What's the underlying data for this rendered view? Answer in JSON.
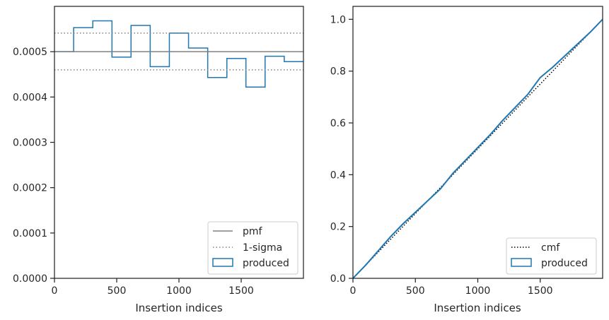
{
  "chart_data": [
    {
      "type": "histogram-step",
      "xlabel": "Insertion indices",
      "ylabel": "",
      "xlim": [
        0,
        2000
      ],
      "ylim": [
        0,
        0.0006
      ],
      "xticks": [
        0,
        500,
        1000,
        1500
      ],
      "xtick_labels": [
        "0",
        "500",
        "1000",
        "1500"
      ],
      "yticks": [
        0,
        0.0001,
        0.0002,
        0.0003,
        0.0004,
        0.0005
      ],
      "ytick_labels": [
        "0.0000",
        "0.0001",
        "0.0002",
        "0.0003",
        "0.0004",
        "0.0005"
      ],
      "bin_edges": [
        0,
        154,
        308,
        462,
        615,
        769,
        923,
        1077,
        1231,
        1385,
        1538,
        1692,
        1846,
        2000
      ],
      "series": [
        {
          "name": "produced",
          "kind": "step",
          "color": "#1f77b4",
          "values": [
            0.0005,
            0.000553,
            0.000568,
            0.000488,
            0.000558,
            0.000467,
            0.000541,
            0.000508,
            0.000443,
            0.000485,
            0.000422,
            0.00049,
            0.000478
          ]
        },
        {
          "name": "pmf",
          "kind": "hline",
          "color": "#808080",
          "value": 0.0005
        },
        {
          "name": "1-sigma",
          "kind": "hline-pair",
          "color": "#808080",
          "values": [
            0.00046,
            0.000541
          ]
        }
      ],
      "legend": {
        "position": "lower-right",
        "entries": [
          {
            "label": "pmf",
            "marker": "solid-line"
          },
          {
            "label": "1-sigma",
            "marker": "dotted-line"
          },
          {
            "label": "produced",
            "marker": "patch"
          }
        ]
      },
      "grid": false
    },
    {
      "type": "line",
      "xlabel": "Insertion indices",
      "ylabel": "",
      "xlim": [
        0,
        2000
      ],
      "ylim": [
        0,
        1.05
      ],
      "xticks": [
        0,
        500,
        1000,
        1500
      ],
      "xtick_labels": [
        "0",
        "500",
        "1000",
        "1500"
      ],
      "yticks": [
        0,
        0.2,
        0.4,
        0.6,
        0.8,
        1.0
      ],
      "ytick_labels": [
        "0.0",
        "0.2",
        "0.4",
        "0.6",
        "0.8",
        "1.0"
      ],
      "series": [
        {
          "name": "cmf",
          "kind": "dotted-line",
          "color": "#000000",
          "x": [
            0,
            2000
          ],
          "y": [
            0,
            1
          ]
        },
        {
          "name": "produced",
          "kind": "line",
          "color": "#1f77b4",
          "x": [
            0,
            100,
            200,
            300,
            400,
            500,
            600,
            700,
            800,
            900,
            1000,
            1100,
            1200,
            1300,
            1400,
            1500,
            1600,
            1700,
            1800,
            1900,
            2000
          ],
          "y": [
            0,
            0.05,
            0.105,
            0.16,
            0.21,
            0.255,
            0.3,
            0.345,
            0.405,
            0.455,
            0.505,
            0.555,
            0.61,
            0.66,
            0.71,
            0.775,
            0.815,
            0.86,
            0.905,
            0.95,
            1.0
          ]
        }
      ],
      "legend": {
        "position": "lower-right",
        "entries": [
          {
            "label": "cmf",
            "marker": "dotted-line"
          },
          {
            "label": "produced",
            "marker": "patch"
          }
        ]
      },
      "grid": false
    }
  ]
}
